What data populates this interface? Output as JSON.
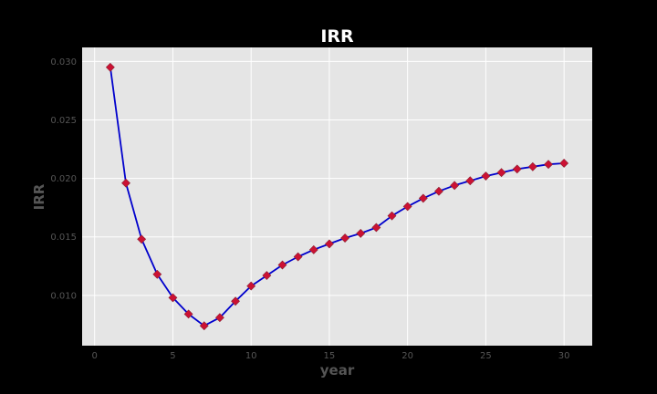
{
  "chart_data": {
    "type": "line",
    "title": "IRR",
    "xlabel": "year",
    "ylabel": "IRR",
    "xlim": [
      -0.8,
      31.8
    ],
    "ylim": [
      0.0057,
      0.0312
    ],
    "xticks": [
      0,
      5,
      10,
      15,
      20,
      25,
      30
    ],
    "yticks": [
      0.01,
      0.015,
      0.02,
      0.025,
      0.03
    ],
    "ytick_labels": [
      "0.010",
      "0.015",
      "0.020",
      "0.025",
      "0.030"
    ],
    "grid": true,
    "style": {
      "background": "#000000",
      "plot_background": "#e5e5e5",
      "grid_color": "#ffffff",
      "line_color": "#0000cc",
      "marker_color": "#cc1133",
      "marker": "diamond"
    },
    "series": [
      {
        "x": [
          1,
          2,
          3,
          4,
          5,
          6,
          7,
          8,
          9,
          10,
          11,
          12,
          13,
          14,
          15,
          16,
          17,
          18,
          19,
          20,
          21,
          22,
          23,
          24,
          25,
          26,
          27,
          28,
          29,
          30
        ],
        "y": [
          0.0295,
          0.0196,
          0.0148,
          0.0118,
          0.0098,
          0.0084,
          0.0074,
          0.0081,
          0.0095,
          0.0108,
          0.0117,
          0.0126,
          0.0133,
          0.0139,
          0.0144,
          0.0149,
          0.0153,
          0.0158,
          0.0168,
          0.0176,
          0.0183,
          0.0189,
          0.0194,
          0.0198,
          0.0202,
          0.0205,
          0.0208,
          0.021,
          0.0212,
          0.0213
        ]
      }
    ]
  }
}
